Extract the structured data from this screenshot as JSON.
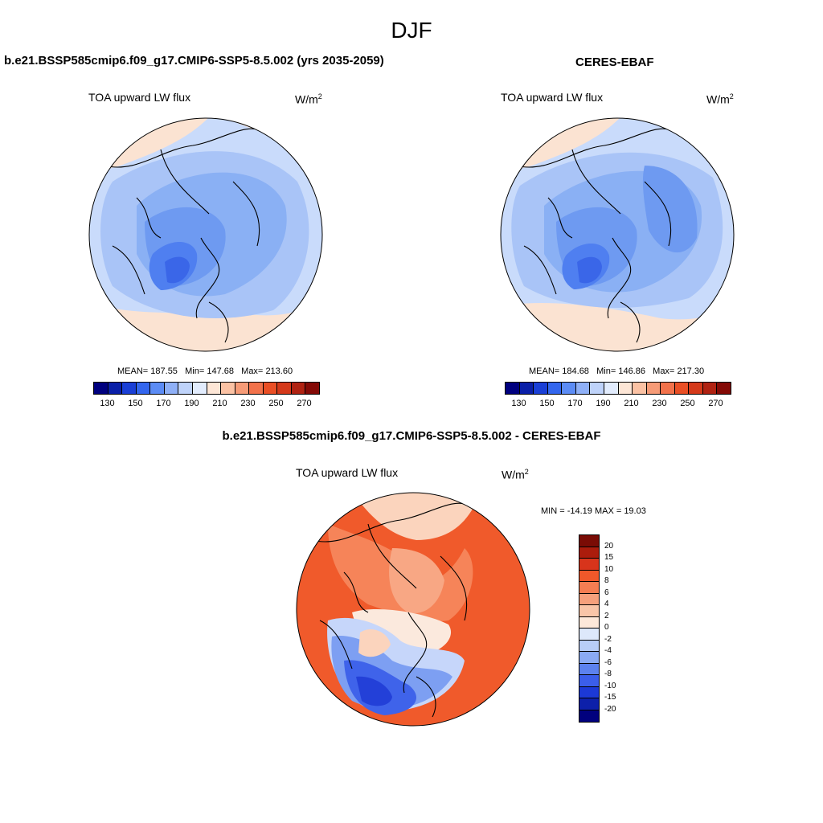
{
  "figure": {
    "season": "DJF"
  },
  "panel_model": {
    "title": "b.e21.BSSP585cmip6.f09_g17.CMIP6-SSP5-8.5.002 (yrs 2035-2059)",
    "variable": "TOA upward LW flux",
    "units_base": "W/m",
    "units_exp": "2",
    "mean_label": "MEAN=",
    "mean": "187.55",
    "min_label": "Min=",
    "min": "147.68",
    "max_label": "Max=",
    "max": "213.60"
  },
  "panel_obs": {
    "title": "CERES-EBAF",
    "variable": "TOA upward LW flux",
    "units_base": "W/m",
    "units_exp": "2",
    "mean_label": "MEAN=",
    "mean": "184.68",
    "min_label": "Min=",
    "min": "146.86",
    "max_label": "Max=",
    "max": "217.30"
  },
  "panel_diff": {
    "title": "b.e21.BSSP585cmip6.f09_g17.CMIP6-SSP5-8.5.002 - CERES-EBAF",
    "variable": "TOA upward LW flux",
    "units_base": "W/m",
    "units_exp": "2",
    "minmax": "MIN = -14.19 MAX =  19.03"
  },
  "colorbar_abs": {
    "colors": [
      "#00007f",
      "#0a1fa8",
      "#1a3fd6",
      "#3366ee",
      "#5c8cf5",
      "#8fb0f7",
      "#bfd3fa",
      "#e2ecfd",
      "#fde6d6",
      "#fbc2a4",
      "#f69b77",
      "#f2724b",
      "#ea4f25",
      "#d4391a",
      "#b02212",
      "#840a06"
    ],
    "tick_labels": [
      "130",
      "150",
      "170",
      "190",
      "210",
      "230",
      "250",
      "270"
    ]
  },
  "colorbar_diff": {
    "colors": [
      "#7a0c05",
      "#ab1c0c",
      "#d8341b",
      "#f0582a",
      "#f47d52",
      "#f6a07c",
      "#f9c5a8",
      "#fde8d9",
      "#dde8fb",
      "#b8cdf7",
      "#8aaaf3",
      "#5c82ee",
      "#3b5eea",
      "#1c39d6",
      "#0d20aa",
      "#01017e"
    ],
    "tick_labels": [
      "20",
      "15",
      "10",
      "8",
      "6",
      "4",
      "2",
      "0",
      "-2",
      "-4",
      "-6",
      "-8",
      "-10",
      "-15",
      "-20"
    ]
  },
  "map_legend": {
    "abs_palette": [
      "#c9dbfb",
      "#a9c4f7",
      "#8ab0f4",
      "#6e9af1",
      "#4f7ff0",
      "#3a66e8",
      "#fbe3d2"
    ],
    "diff_palette": [
      "#f05a2b",
      "#f68459",
      "#f8a784",
      "#fbd4bd",
      "#fbe9dd",
      "#c6d6fa",
      "#7d9ff2",
      "#3f63ea",
      "#2340d8"
    ]
  }
}
